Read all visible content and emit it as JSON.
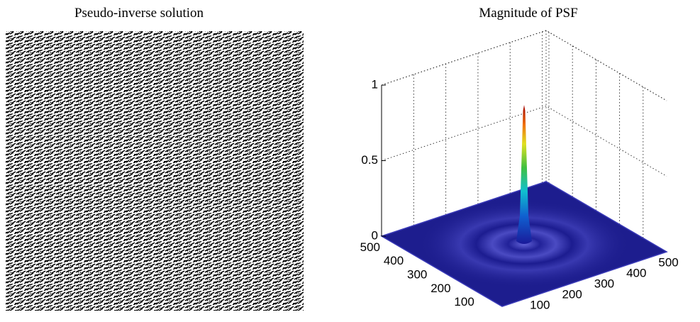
{
  "chart_data": [
    {
      "type": "image",
      "title": "Pseudo-inverse solution"
    },
    {
      "type": "surface",
      "title": "Magnitude of PSF",
      "xlim": [
        0,
        512
      ],
      "ylim": [
        0,
        512
      ],
      "zlim": [
        0,
        1
      ],
      "xticks": [
        100,
        200,
        300,
        400,
        500
      ],
      "yticks": [
        100,
        200,
        300,
        400,
        500
      ],
      "zticks": [
        0,
        0.5,
        1
      ],
      "peak": 0.92,
      "grid": true
    }
  ]
}
